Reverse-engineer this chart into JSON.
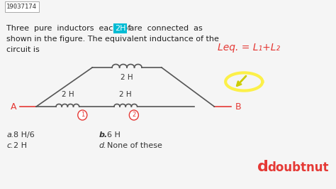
{
  "bg_color": "#f5f5f5",
  "id_text": "19037174",
  "question_text_parts": [
    {
      "text": "Three  pure  inductors  each  of ",
      "color": "#222222"
    },
    {
      "text": "2H",
      "color": "#ffffff",
      "bg": "#00bcd4"
    },
    {
      "text": " are  connected  as",
      "color": "#222222"
    }
  ],
  "question_line2": "shown in the figure. The equivalent inductance of the",
  "question_line3": "circuit is",
  "circuit": {
    "A_label": "A",
    "B_label": "B",
    "top_label": "2 H",
    "mid_left_label": "2 H",
    "mid_right_label": "2 H",
    "node1_label": "1",
    "node2_label": "2"
  },
  "options": [
    {
      "letter": "a.",
      "text": "8 H/6"
    },
    {
      "letter": "b.",
      "text": "6 H"
    },
    {
      "letter": "c.",
      "text": "2 H"
    },
    {
      "letter": "d.",
      "text": "None of these"
    }
  ],
  "annotation_text": "Leq. = L₁+L₂",
  "doubtnut_color": "#e53935",
  "title_font": 7,
  "body_font": 8
}
